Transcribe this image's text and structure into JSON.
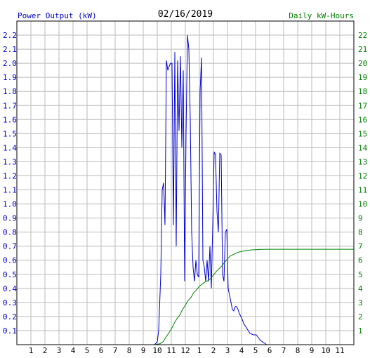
{
  "header": {
    "left_label": "Power Output (kW)",
    "date": "02/16/2019",
    "right_label": "Daily kW-Hours"
  },
  "colors": {
    "left_axis": "#0000cc",
    "right_axis": "#008000",
    "power_line": "#0000cc",
    "energy_line": "#008000",
    "grid": "#bbbbbb",
    "frame": "#000000"
  },
  "chart_data": {
    "type": "line",
    "x_ticks": [
      "1",
      "2",
      "3",
      "4",
      "5",
      "6",
      "7",
      "8",
      "9",
      "10",
      "11",
      "12",
      "1",
      "2",
      "3",
      "4",
      "5",
      "6",
      "7",
      "8",
      "9",
      "10",
      "11"
    ],
    "x_range_hours": [
      0,
      24
    ],
    "y_left_ticks": [
      "0.1",
      "0.2",
      "0.3",
      "0.4",
      "0.5",
      "0.6",
      "0.7",
      "0.8",
      "0.9",
      "1.0",
      "1.1",
      "1.2",
      "1.3",
      "1.4",
      "1.5",
      "1.6",
      "1.7",
      "1.8",
      "1.9",
      "2.0",
      "2.1",
      "2.2"
    ],
    "y_left_range": [
      0,
      2.3
    ],
    "y_right_ticks": [
      "1",
      "2",
      "3",
      "4",
      "5",
      "6",
      "7",
      "8",
      "9",
      "10",
      "11",
      "12",
      "13",
      "14",
      "15",
      "16",
      "17",
      "18",
      "19",
      "20",
      "21",
      "22"
    ],
    "y_right_range": [
      0,
      23
    ],
    "grid": true,
    "series": [
      {
        "name": "Power Output (kW)",
        "axis": "left",
        "x": [
          9.8,
          10.0,
          10.1,
          10.25,
          10.35,
          10.45,
          10.55,
          10.65,
          10.75,
          10.85,
          10.95,
          11.05,
          11.15,
          11.25,
          11.35,
          11.45,
          11.55,
          11.65,
          11.75,
          11.85,
          11.95,
          12.05,
          12.15,
          12.25,
          12.35,
          12.45,
          12.55,
          12.65,
          12.75,
          12.85,
          12.95,
          13.05,
          13.15,
          13.25,
          13.35,
          13.45,
          13.55,
          13.65,
          13.75,
          13.85,
          13.95,
          14.05,
          14.15,
          14.25,
          14.35,
          14.45,
          14.55,
          14.65,
          14.75,
          14.85,
          14.95,
          15.05,
          15.15,
          15.25,
          15.35,
          15.45,
          15.55,
          15.65,
          15.75,
          15.85,
          15.95,
          16.05,
          16.15,
          16.35,
          16.6,
          16.85,
          17.05,
          17.2,
          17.35,
          17.5,
          17.65,
          17.8,
          17.95,
          18.1
        ],
        "y": [
          0.0,
          0.02,
          0.1,
          0.5,
          1.1,
          1.15,
          0.85,
          2.02,
          1.95,
          1.98,
          2.0,
          2.0,
          0.85,
          2.08,
          0.7,
          2.02,
          1.52,
          2.05,
          1.4,
          1.95,
          0.45,
          1.5,
          2.2,
          2.1,
          1.6,
          0.8,
          0.55,
          0.45,
          0.6,
          0.5,
          0.48,
          1.8,
          2.04,
          0.6,
          0.55,
          0.45,
          0.6,
          0.45,
          0.7,
          0.4,
          0.85,
          1.37,
          1.35,
          0.95,
          0.8,
          1.36,
          1.35,
          0.5,
          0.45,
          0.8,
          0.82,
          0.4,
          0.35,
          0.3,
          0.25,
          0.24,
          0.27,
          0.27,
          0.25,
          0.22,
          0.2,
          0.18,
          0.15,
          0.12,
          0.08,
          0.07,
          0.07,
          0.05,
          0.03,
          0.02,
          0.01,
          0.0,
          0.0,
          0.0
        ]
      },
      {
        "name": "Daily kW-Hours",
        "axis": "right",
        "x": [
          9.8,
          10.0,
          10.2,
          10.4,
          10.6,
          10.8,
          11.0,
          11.2,
          11.4,
          11.6,
          11.8,
          12.0,
          12.2,
          12.4,
          12.6,
          12.8,
          13.0,
          13.2,
          13.4,
          13.6,
          13.8,
          14.0,
          14.2,
          14.4,
          14.6,
          14.8,
          15.0,
          15.2,
          15.4,
          15.6,
          15.8,
          16.0,
          16.2,
          16.4,
          16.6,
          16.8,
          17.0,
          17.2,
          17.4,
          17.6,
          17.8,
          18.0,
          19.0,
          20.0,
          21.0,
          22.0,
          23.0,
          24.0
        ],
        "y": [
          0.0,
          0.03,
          0.07,
          0.2,
          0.5,
          0.8,
          1.1,
          1.5,
          1.85,
          2.1,
          2.5,
          2.8,
          3.15,
          3.35,
          3.7,
          3.9,
          4.15,
          4.3,
          4.45,
          4.55,
          4.7,
          4.95,
          5.2,
          5.4,
          5.6,
          5.85,
          6.1,
          6.3,
          6.4,
          6.5,
          6.58,
          6.62,
          6.67,
          6.7,
          6.72,
          6.74,
          6.75,
          6.76,
          6.77,
          6.77,
          6.78,
          6.78,
          6.78,
          6.78,
          6.78,
          6.78,
          6.78,
          6.78
        ]
      }
    ]
  }
}
